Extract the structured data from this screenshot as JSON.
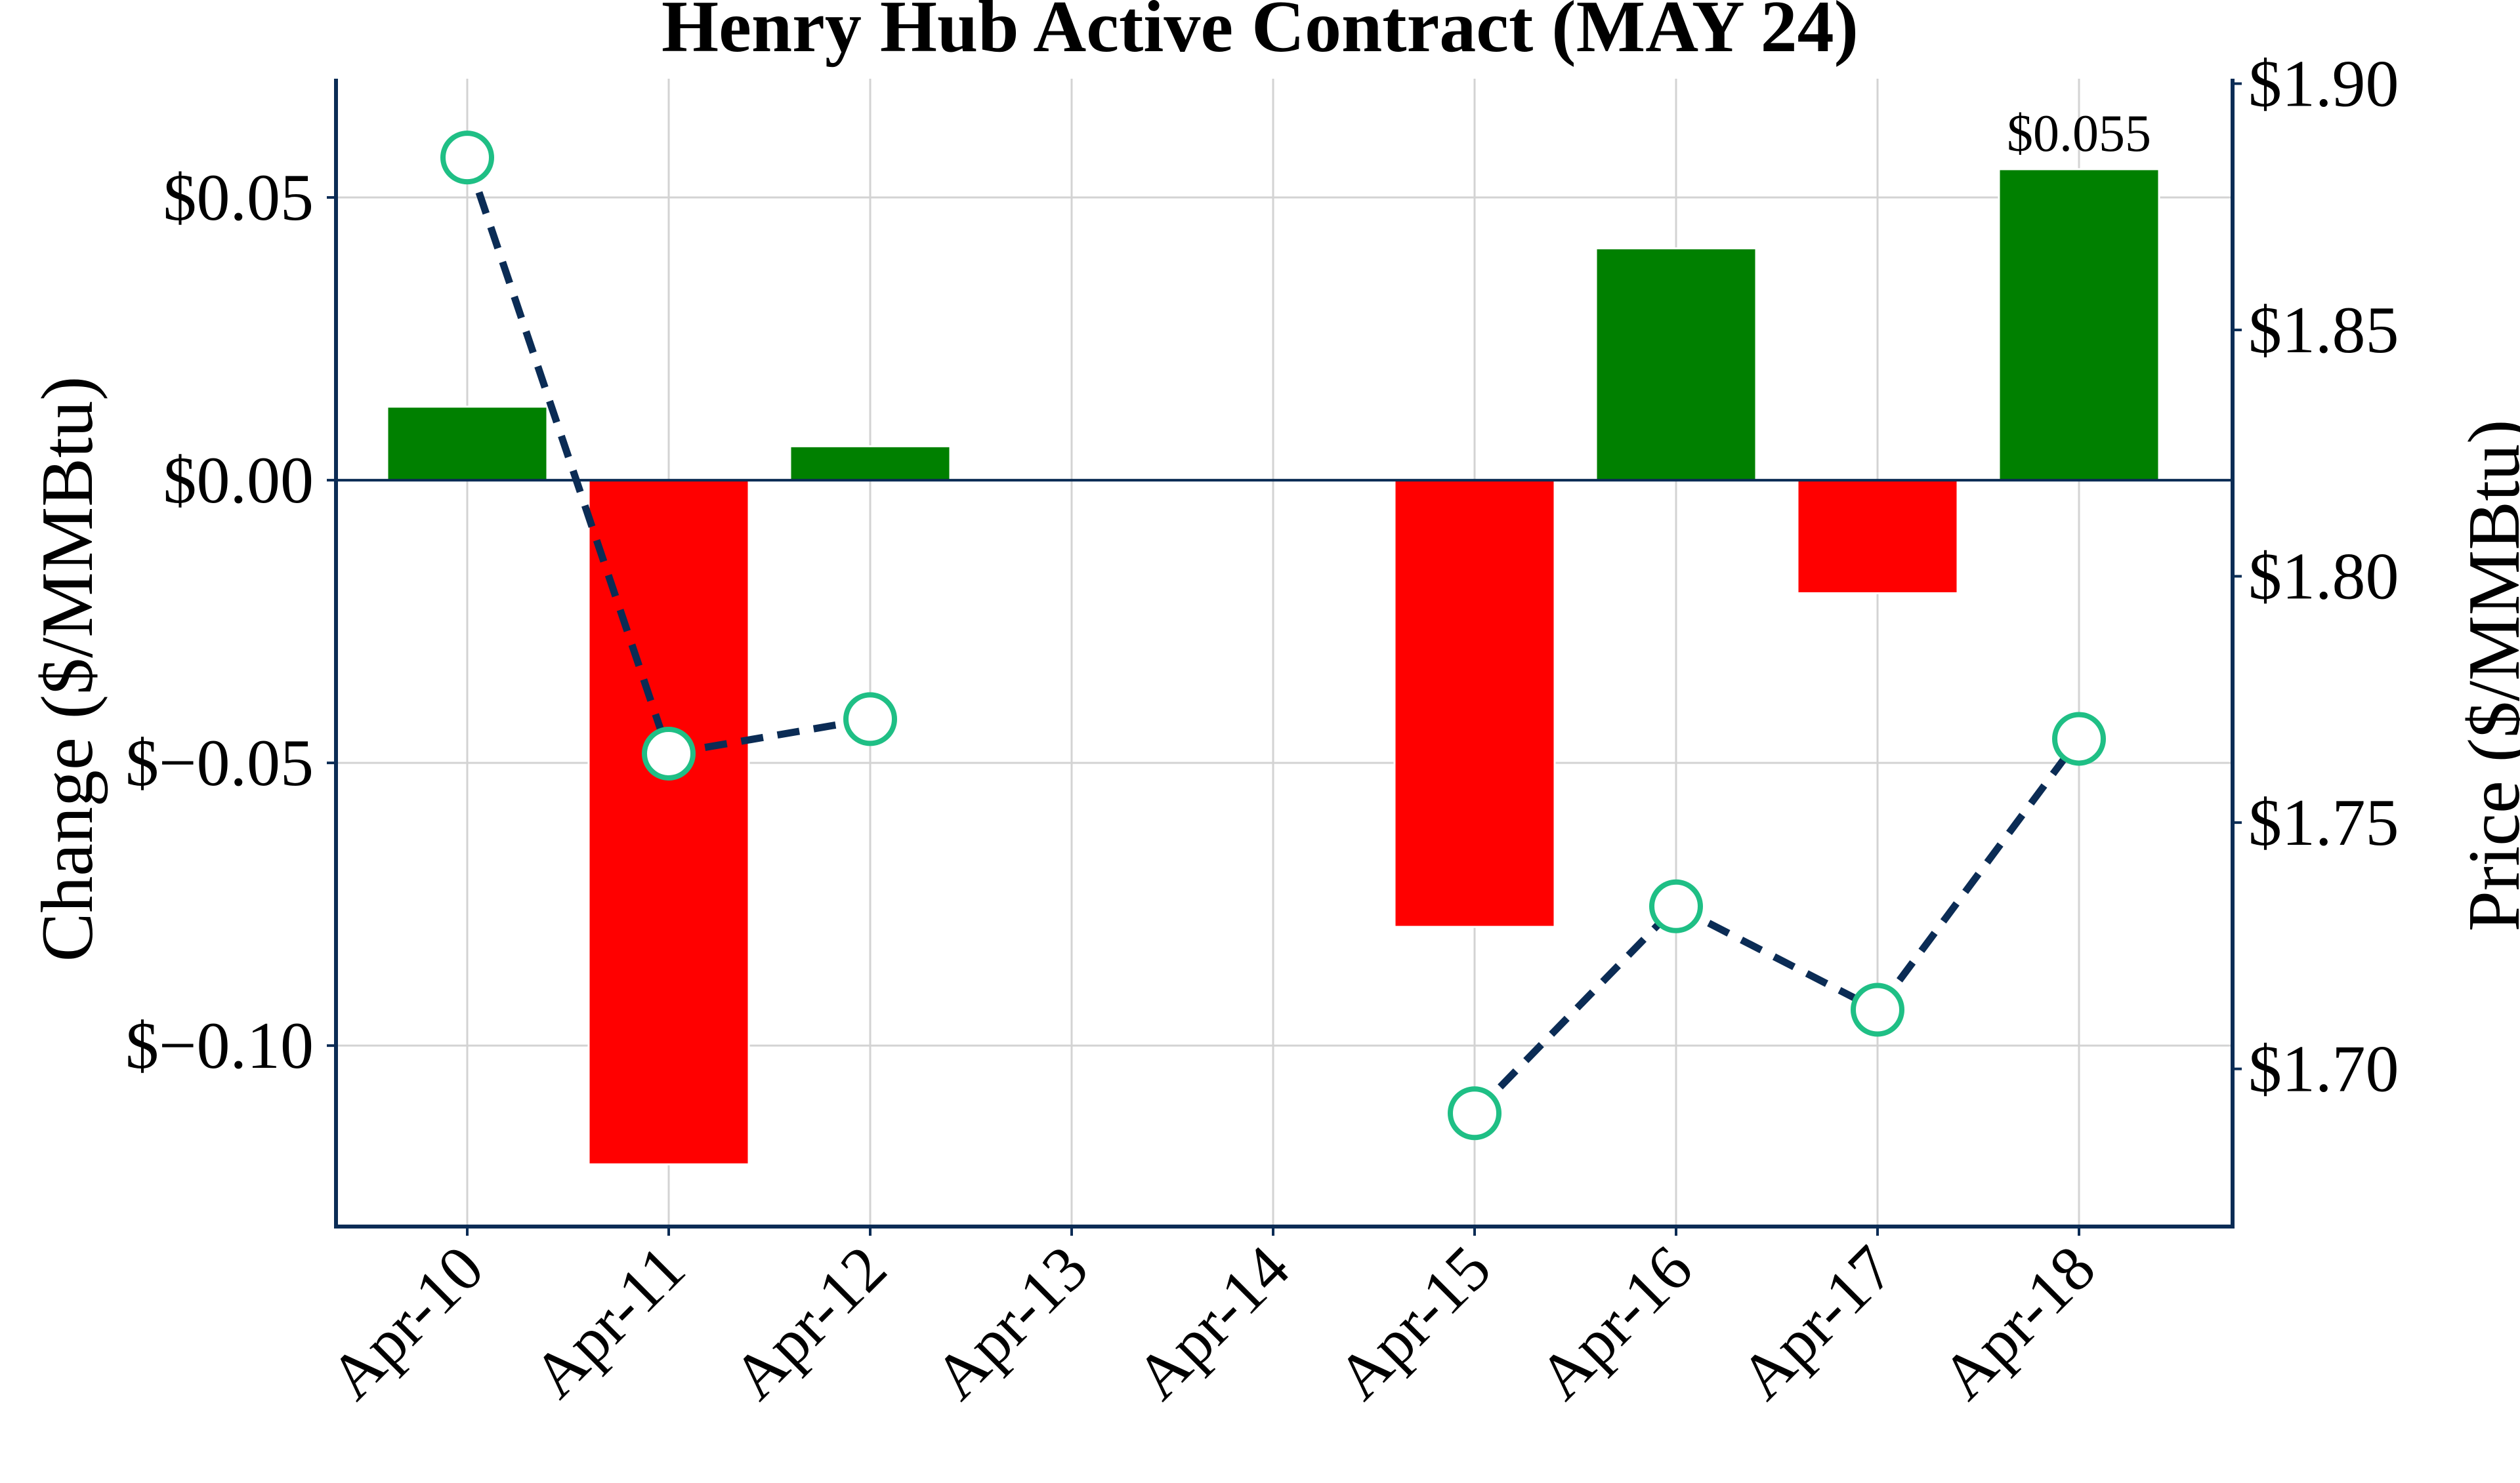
{
  "chart_data": {
    "type": "bar",
    "title": "Henry Hub Active Contract (MAY 24)",
    "categories": [
      "Apr-10",
      "Apr-11",
      "Apr-12",
      "Apr-13",
      "Apr-14",
      "Apr-15",
      "Apr-16",
      "Apr-17",
      "Apr-18"
    ],
    "left_axis": {
      "label": "Change ($/MMBtu)",
      "ylim": [
        -0.132,
        0.071
      ],
      "ticks": [
        0.05,
        0.0,
        -0.05,
        -0.1
      ],
      "tick_labels": [
        "$0.05",
        "$0.00",
        "$−0.05",
        "$−0.10"
      ]
    },
    "right_axis": {
      "label": "Price ($/MMBtu)",
      "ylim": [
        1.668,
        1.901
      ],
      "ticks": [
        1.9,
        1.85,
        1.8,
        1.75,
        1.7
      ],
      "tick_labels": [
        "$1.90",
        "$1.85",
        "$1.80",
        "$1.75",
        "$1.70"
      ]
    },
    "series": [
      {
        "type": "bar",
        "axis": "left",
        "values": [
          0.013,
          -0.121,
          0.006,
          null,
          null,
          -0.079,
          0.041,
          -0.02,
          0.055
        ],
        "positive_color": "#008000",
        "negative_color": "#ff0000"
      },
      {
        "type": "line",
        "axis": "right",
        "values": [
          1.885,
          1.764,
          1.771,
          null,
          null,
          1.691,
          1.733,
          1.712,
          1.767
        ],
        "line_color": "#0b2c55",
        "line_style": "dashed",
        "marker": "open-circle",
        "marker_color": "#1fbf85"
      }
    ],
    "annotations": [
      {
        "category": "Apr-18",
        "text": "$0.055"
      }
    ],
    "grid": true,
    "axis_color": "#0b2c55"
  }
}
